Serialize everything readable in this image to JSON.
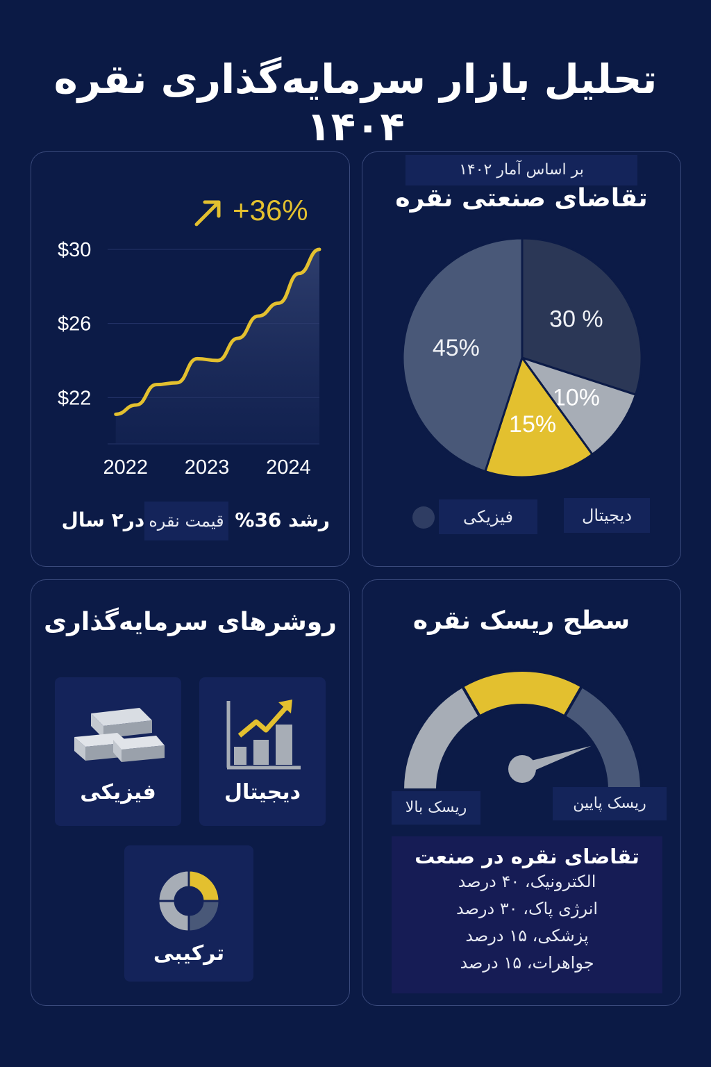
{
  "title": "تحلیل بازار سرمایه‌گذاری نقره ۱۴۰۴",
  "price_card": {
    "growth_badge": "+36%",
    "caption_prefix": "رشد 36%",
    "caption_box": "قیمت نقره",
    "caption_suffix": "در۲ سال"
  },
  "demand_card": {
    "source_label": "بر اساس آمار ۱۴۰۲",
    "heading": "تقاضای صنعتی نقره",
    "legend": [
      "فیزیکی",
      "دیجیتال"
    ]
  },
  "methods_card": {
    "heading": "روشرهای سرمایه‌گذاری",
    "items": [
      "فیزیکی",
      "دیجیتال",
      "ترکیبی"
    ]
  },
  "risk_card": {
    "heading": "سطح ریسک نقره",
    "high_label": "ریسک بالا",
    "low_label": "ریسک پایین"
  },
  "industry": {
    "heading": "تقاضای نقره در صنعت",
    "rows": [
      "الکترونیک، ۴۰ درصد",
      "انرژی پاک، ۳۰ درصد",
      "پزشکی، ۱۵ درصد",
      "جواهرات، ۱۵ درصد"
    ]
  },
  "colors": {
    "background": "#0b1a45",
    "gold": "#e3c02f",
    "slate_dark": "#2b3756",
    "slate_mid": "#495878",
    "slate_light": "#a7adb6"
  },
  "chart_data": [
    {
      "type": "area",
      "x": [
        2022,
        2022.25,
        2022.5,
        2022.75,
        2023,
        2023.25,
        2023.5,
        2023.75,
        2024,
        2024.25,
        2024.5
      ],
      "y": [
        21.1,
        21.6,
        22.7,
        22.8,
        24.1,
        24.0,
        25.2,
        26.4,
        27.1,
        28.7,
        30.0
      ],
      "x_ticks": [
        "2022",
        "2023",
        "2024"
      ],
      "y_ticks": [
        "$22",
        "$26",
        "$30"
      ],
      "y_tick_values": [
        22,
        26,
        30
      ],
      "ylim": [
        19.5,
        30
      ],
      "xlim": [
        2021.9,
        2024.5
      ],
      "grid": true
    },
    {
      "type": "pie",
      "labels": [
        "30 %",
        "10%",
        "15%",
        "45%"
      ],
      "values": [
        30,
        10,
        15,
        45
      ]
    },
    {
      "type": "gauge",
      "segments": 4,
      "needle_value": 0.82
    }
  ]
}
